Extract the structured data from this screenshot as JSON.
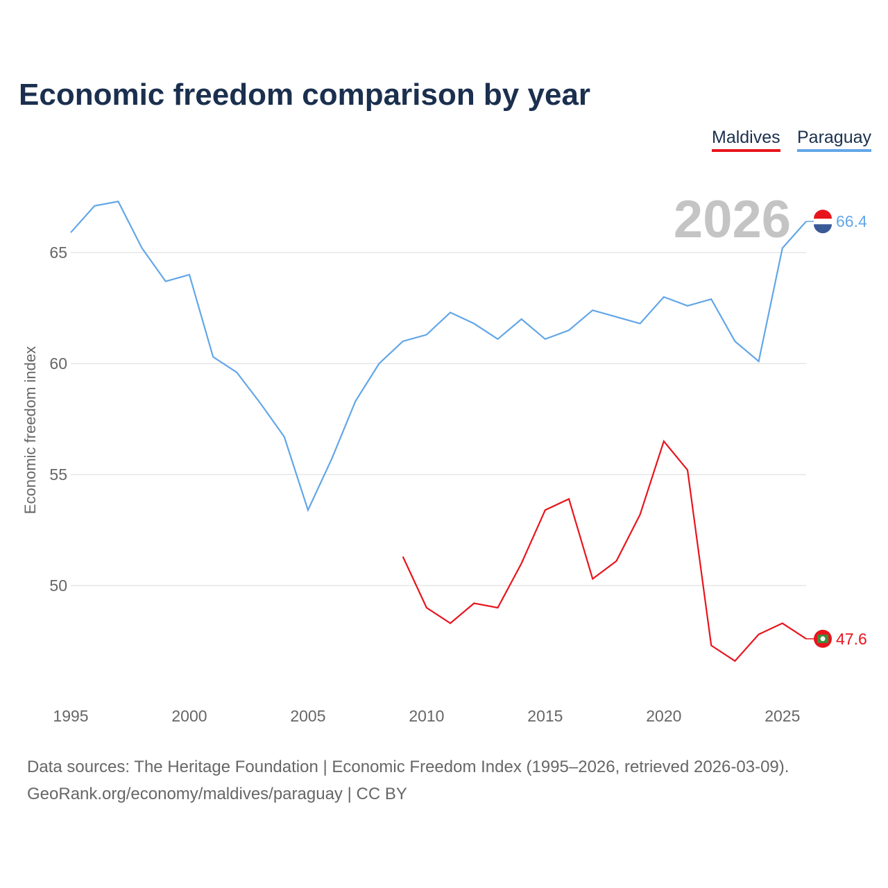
{
  "chart_data": {
    "type": "line",
    "title": "Economic freedom comparison by year",
    "xlabel": "",
    "ylabel": "Economic freedom index",
    "year_watermark": "2026",
    "xlim": [
      1995,
      2026
    ],
    "ylim": [
      46,
      68
    ],
    "x_ticks": [
      1995,
      2000,
      2005,
      2010,
      2015,
      2020,
      2025
    ],
    "y_ticks": [
      50,
      55,
      60,
      65
    ],
    "grid": true,
    "legend_placement": "top-right",
    "series": [
      {
        "name": "Maldives",
        "color": "#e8141c",
        "end_label": "47.6",
        "x": [
          2009,
          2010,
          2011,
          2012,
          2013,
          2014,
          2015,
          2016,
          2017,
          2018,
          2019,
          2020,
          2021,
          2022,
          2023,
          2024,
          2025,
          2026
        ],
        "values": [
          51.3,
          49.0,
          48.3,
          49.2,
          49.0,
          51.0,
          53.4,
          53.9,
          50.3,
          51.1,
          53.2,
          56.5,
          55.2,
          47.3,
          46.6,
          47.8,
          48.3,
          47.6
        ]
      },
      {
        "name": "Paraguay",
        "color": "#62a6e8",
        "end_label": "66.4",
        "x": [
          1995,
          1996,
          1997,
          1998,
          1999,
          2000,
          2001,
          2002,
          2003,
          2004,
          2005,
          2006,
          2007,
          2008,
          2009,
          2010,
          2011,
          2012,
          2013,
          2014,
          2015,
          2016,
          2017,
          2018,
          2019,
          2020,
          2021,
          2022,
          2023,
          2024,
          2025,
          2026
        ],
        "values": [
          65.9,
          67.1,
          67.3,
          65.2,
          63.7,
          64.0,
          60.3,
          59.6,
          58.2,
          56.7,
          53.4,
          55.7,
          58.3,
          60.0,
          61.0,
          61.3,
          62.3,
          61.8,
          61.1,
          62.0,
          61.1,
          61.5,
          62.4,
          62.1,
          61.8,
          63.0,
          62.6,
          62.9,
          61.0,
          60.1,
          65.2,
          66.4
        ]
      }
    ]
  },
  "footer": {
    "line1": "Data sources: The Heritage Foundation | Economic Freedom Index (1995–2026, retrieved 2026-03-09).",
    "line2": "GeoRank.org/economy/maldives/paraguay | CC BY"
  }
}
